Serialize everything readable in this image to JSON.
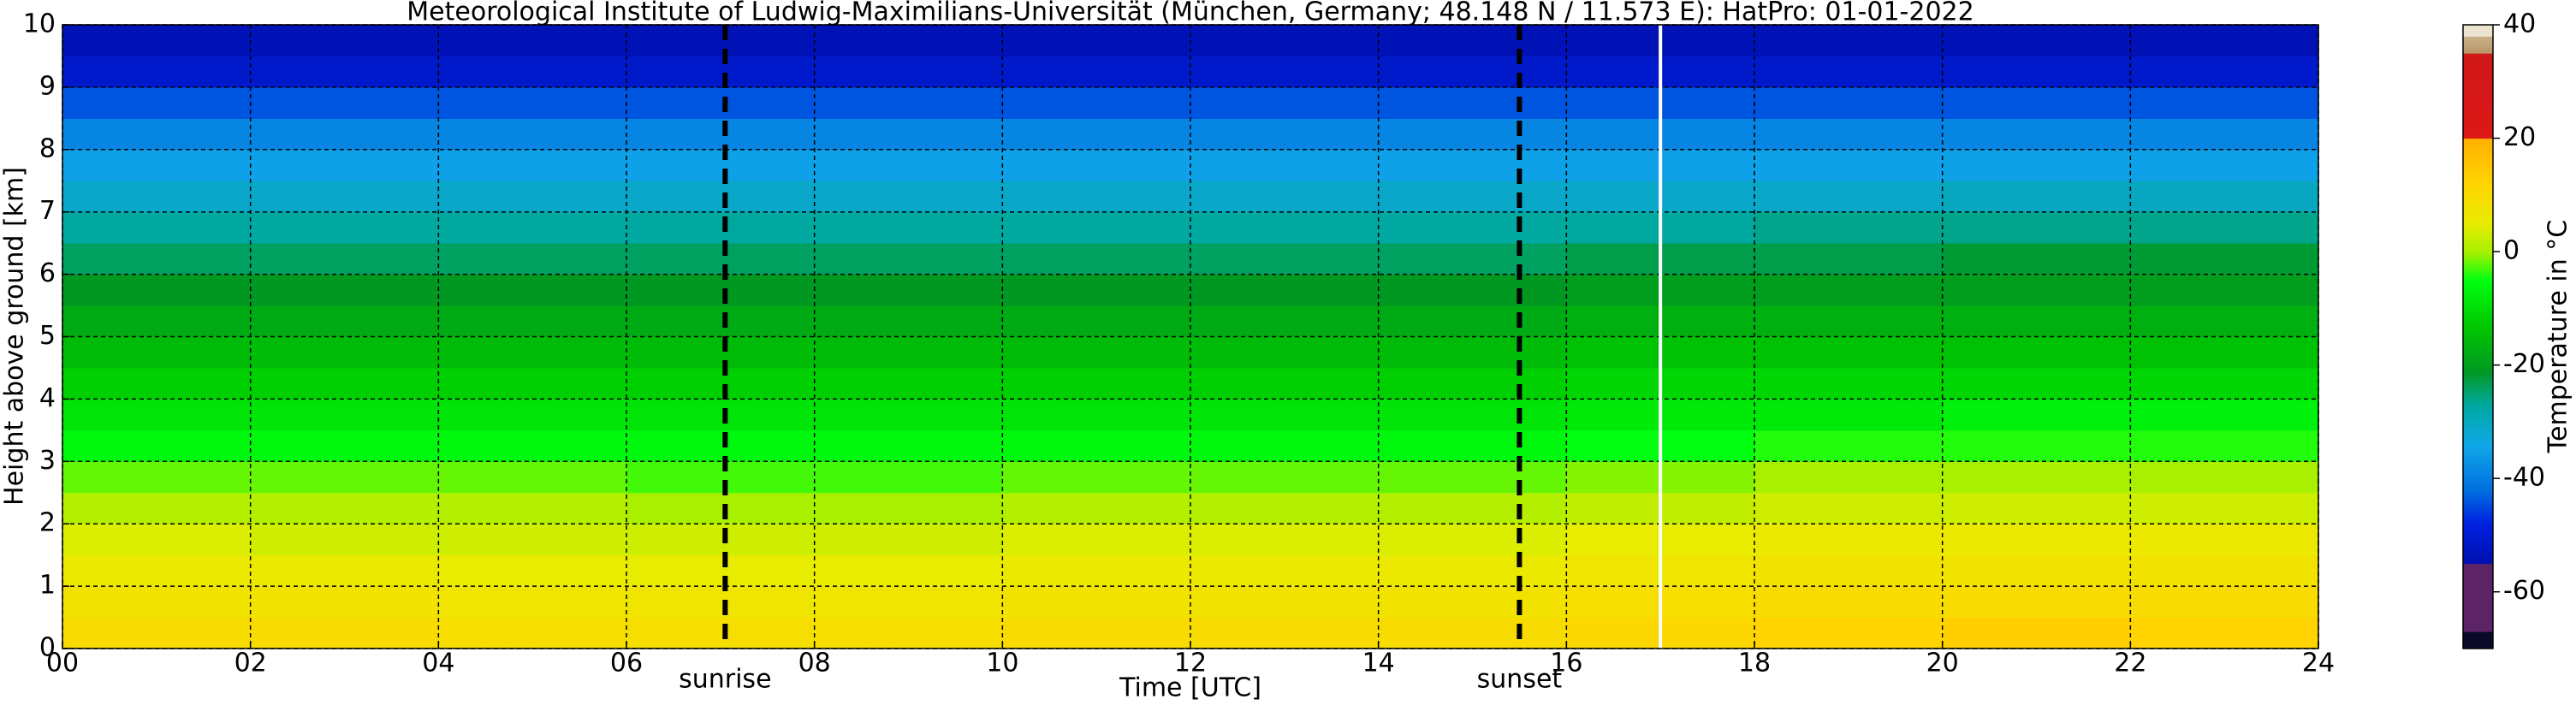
{
  "chart_data": {
    "type": "heatmap",
    "title": "Meteorological Institute of Ludwig-Maximilians-Universität (München, Germany; 48.148 N / 11.573 E):    HatPro: 01-01-2022",
    "xlabel": "Time [UTC]",
    "ylabel": "Height above ground [km]",
    "xlim": [
      0,
      24
    ],
    "ylim": [
      0,
      10
    ],
    "xticks": [
      {
        "value": 0,
        "label": "00"
      },
      {
        "value": 2,
        "label": "02"
      },
      {
        "value": 4,
        "label": "04"
      },
      {
        "value": 6,
        "label": "06"
      },
      {
        "value": 8,
        "label": "08"
      },
      10,
      12,
      14,
      16,
      18,
      20,
      22,
      24
    ],
    "yticks": [
      0,
      1,
      2,
      3,
      4,
      5,
      6,
      7,
      8,
      9,
      10
    ],
    "grid": true,
    "x_edges": [
      0,
      2,
      4,
      6,
      8,
      10,
      12,
      14,
      16,
      18,
      20,
      22,
      24
    ],
    "y_edges": [
      0,
      0.5,
      1,
      1.5,
      2,
      2.5,
      3,
      3.5,
      4,
      4.5,
      5,
      5.5,
      6,
      6.5,
      7,
      7.5,
      8,
      8.5,
      9,
      9.5,
      10
    ],
    "values": [
      [
        10,
        10,
        9,
        9,
        9,
        10,
        10,
        10,
        11,
        12,
        13,
        12
      ],
      [
        8,
        8,
        7,
        7,
        7,
        8,
        8,
        8,
        9,
        10,
        10,
        10
      ],
      [
        6,
        6,
        5,
        5,
        5,
        6,
        6,
        6,
        7,
        8,
        8,
        8
      ],
      [
        4,
        3,
        3,
        3,
        3,
        4,
        4,
        4,
        5,
        6,
        6,
        6
      ],
      [
        1,
        1,
        1,
        0,
        0,
        1,
        1,
        1,
        2,
        3,
        3,
        3
      ],
      [
        -2,
        -2,
        -2,
        -3,
        -3,
        -2,
        -2,
        -2,
        -1,
        0,
        0,
        0
      ],
      [
        -6,
        -6,
        -6,
        -6,
        -6,
        -6,
        -6,
        -6,
        -5,
        -4,
        -4,
        -4
      ],
      [
        -9,
        -9,
        -9,
        -9,
        -9,
        -9,
        -9,
        -9,
        -8,
        -8,
        -7,
        -7
      ],
      [
        -12,
        -12,
        -12,
        -12,
        -12,
        -12,
        -12,
        -12,
        -11,
        -11,
        -11,
        -11
      ],
      [
        -15,
        -15,
        -15,
        -15,
        -15,
        -15,
        -15,
        -15,
        -14,
        -14,
        -14,
        -14
      ],
      [
        -18,
        -18,
        -18,
        -18,
        -18,
        -18,
        -18,
        -18,
        -17,
        -17,
        -17,
        -17
      ],
      [
        -21,
        -21,
        -21,
        -21,
        -21,
        -21,
        -21,
        -21,
        -20,
        -20,
        -20,
        -20
      ],
      [
        -24,
        -24,
        -24,
        -24,
        -24,
        -24,
        -24,
        -24,
        -23,
        -23,
        -22,
        -22
      ],
      [
        -27,
        -27,
        -27,
        -27,
        -27,
        -27,
        -27,
        -27,
        -27,
        -26,
        -26,
        -26
      ],
      [
        -31,
        -31,
        -31,
        -31,
        -31,
        -31,
        -31,
        -31,
        -31,
        -31,
        -30,
        -30
      ],
      [
        -35,
        -35,
        -35,
        -35,
        -35,
        -35,
        -35,
        -35,
        -35,
        -35,
        -35,
        -35
      ],
      [
        -39,
        -39,
        -39,
        -39,
        -39,
        -39,
        -39,
        -39,
        -39,
        -39,
        -39,
        -39
      ],
      [
        -44,
        -44,
        -44,
        -44,
        -44,
        -44,
        -44,
        -44,
        -44,
        -44,
        -44,
        -44
      ],
      [
        -51,
        -51,
        -51,
        -51,
        -51,
        -51,
        -51,
        -51,
        -51,
        -51,
        -51,
        -51
      ],
      [
        -54,
        -54,
        -54,
        -54,
        -54,
        -54,
        -54,
        -54,
        -54,
        -54,
        -54,
        -54
      ]
    ],
    "colorbar": {
      "label": "Temperature in °C",
      "lim": [
        -70,
        40
      ],
      "ticks": [
        -60,
        -40,
        -20,
        0,
        20,
        40
      ]
    },
    "colormap": [
      {
        "value": -70,
        "color": "#0a0a28"
      },
      {
        "value": -67,
        "color": "#0a0a28"
      },
      {
        "value": -66.9,
        "color": "#5c2466"
      },
      {
        "value": -55,
        "color": "#5c2466"
      },
      {
        "value": -54.9,
        "color": "#0010b0"
      },
      {
        "value": -48,
        "color": "#0020e0"
      },
      {
        "value": -42,
        "color": "#0070e0"
      },
      {
        "value": -34,
        "color": "#10a8e8"
      },
      {
        "value": -27,
        "color": "#00a8a0"
      },
      {
        "value": -21,
        "color": "#009820"
      },
      {
        "value": -13,
        "color": "#00c800"
      },
      {
        "value": -5,
        "color": "#00ff10"
      },
      {
        "value": 0,
        "color": "#a8f000"
      },
      {
        "value": 5,
        "color": "#e8ec00"
      },
      {
        "value": 12,
        "color": "#ffd400"
      },
      {
        "value": 19.9,
        "color": "#ffb000"
      },
      {
        "value": 20,
        "color": "#dd1818"
      },
      {
        "value": 35,
        "color": "#d01818"
      },
      {
        "value": 35.1,
        "color": "#b89868"
      },
      {
        "value": 38,
        "color": "#c8b088"
      },
      {
        "value": 38.1,
        "color": "#ece4d0"
      },
      {
        "value": 40,
        "color": "#ece4d0"
      }
    ],
    "annotations": [
      {
        "text": "sunrise",
        "x": 7.05
      },
      {
        "text": "sunset",
        "x": 15.5
      }
    ],
    "gap_x": 17
  }
}
